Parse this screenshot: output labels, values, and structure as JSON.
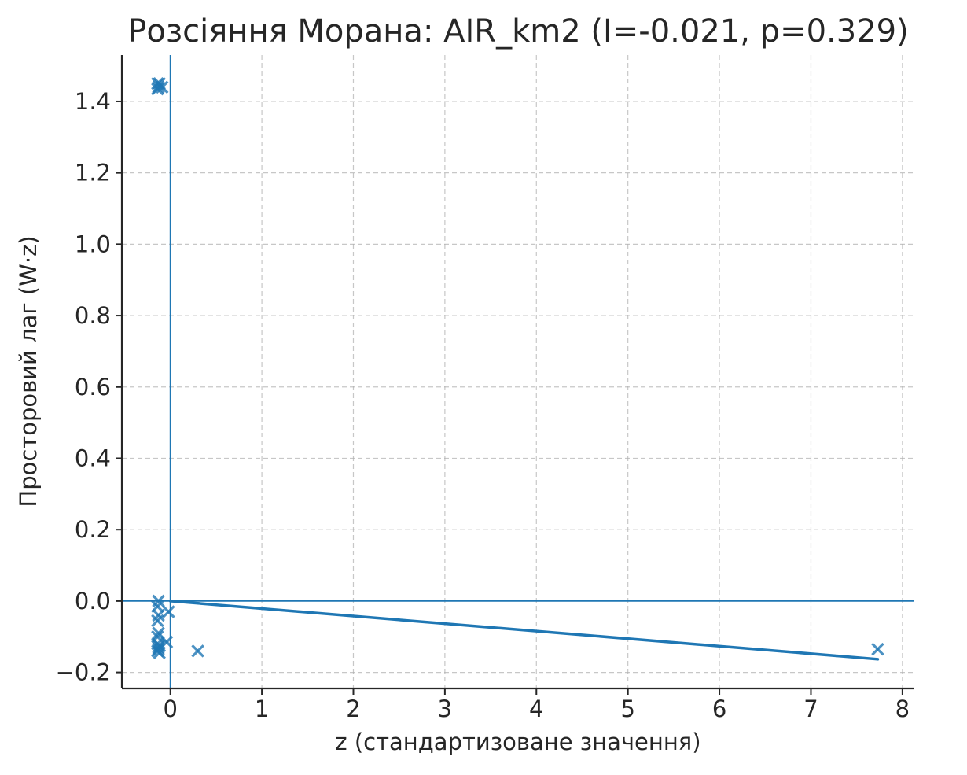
{
  "chart_data": {
    "type": "scatter",
    "title": "Розсіяння Морана: AIR_km2 (I=-0.021, p=0.329)",
    "xlabel": "z (стандартизоване значення)",
    "ylabel": "Просторовий лаг (W·z)",
    "xlim": [
      -0.53,
      8.13
    ],
    "ylim": [
      -0.245,
      1.53
    ],
    "xticks": [
      0,
      1,
      2,
      3,
      4,
      5,
      6,
      7,
      8
    ],
    "xtick_labels": [
      "0",
      "1",
      "2",
      "3",
      "4",
      "5",
      "6",
      "7",
      "8"
    ],
    "yticks": [
      -0.2,
      0.0,
      0.2,
      0.4,
      0.6,
      0.8,
      1.0,
      1.2,
      1.4
    ],
    "ytick_labels": [
      "−0.2",
      "0.0",
      "0.2",
      "0.4",
      "0.6",
      "0.8",
      "1.0",
      "1.2",
      "1.4"
    ],
    "grid": true,
    "reference_lines": {
      "x": 0,
      "y": 0
    },
    "series": [
      {
        "marker": "x",
        "points": [
          {
            "x": -0.14,
            "y": 1.45
          },
          {
            "x": -0.13,
            "y": 1.44
          },
          {
            "x": -0.12,
            "y": 1.45
          },
          {
            "x": -0.14,
            "y": 1.435
          },
          {
            "x": -0.09,
            "y": 1.44
          },
          {
            "x": -0.13,
            "y": 0.0
          },
          {
            "x": -0.14,
            "y": -0.015
          },
          {
            "x": -0.13,
            "y": -0.04
          },
          {
            "x": -0.14,
            "y": -0.055
          },
          {
            "x": -0.02,
            "y": -0.03
          },
          {
            "x": -0.13,
            "y": -0.09
          },
          {
            "x": -0.14,
            "y": -0.1
          },
          {
            "x": -0.14,
            "y": -0.12
          },
          {
            "x": -0.13,
            "y": -0.13
          },
          {
            "x": -0.12,
            "y": -0.125
          },
          {
            "x": -0.14,
            "y": -0.14
          },
          {
            "x": -0.12,
            "y": -0.145
          },
          {
            "x": -0.13,
            "y": -0.135
          },
          {
            "x": -0.04,
            "y": -0.115
          },
          {
            "x": 0.3,
            "y": -0.14
          },
          {
            "x": 7.73,
            "y": -0.135
          }
        ]
      }
    ],
    "fit_line": {
      "x": [
        0,
        7.73
      ],
      "y": [
        0.0,
        -0.163
      ]
    },
    "colors": {
      "points": "#1f77b4",
      "fit_line": "#1f77b4",
      "reference_lines": "#1f77b4"
    }
  }
}
